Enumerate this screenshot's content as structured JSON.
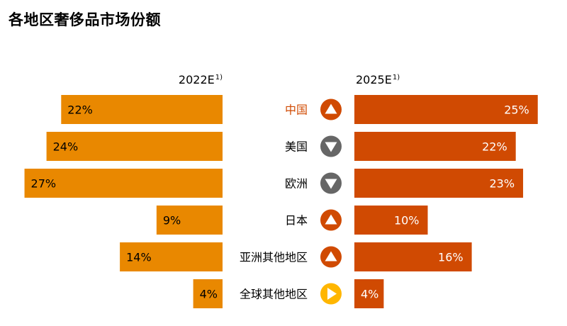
{
  "title": "各地区奢侈品市场份额",
  "header_left": {
    "year": "2022E",
    "footnote": "1)"
  },
  "header_right": {
    "year": "2025E",
    "footnote": "1)"
  },
  "colors": {
    "left_bar": "#e98800",
    "right_bar": "#d04a02",
    "up": "#d04a02",
    "down": "#666666",
    "flat": "#ffb600",
    "highlight_label": "#d04a02",
    "label": "#000000"
  },
  "chart_data": {
    "type": "bar",
    "subtype": "diverging-horizontal",
    "categories": [
      "中国",
      "美国",
      "欧洲",
      "日本",
      "亚洲其他地区",
      "全球其他地区"
    ],
    "series": [
      {
        "name": "2022E",
        "values": [
          22,
          24,
          27,
          9,
          14,
          4
        ],
        "labels": [
          "22%",
          "24%",
          "27%",
          "9%",
          "14%",
          "4%"
        ]
      },
      {
        "name": "2025E",
        "values": [
          25,
          22,
          23,
          10,
          16,
          4
        ],
        "labels": [
          "25%",
          "22%",
          "23%",
          "10%",
          "16%",
          "4%"
        ]
      }
    ],
    "trend_icons": [
      "up",
      "down",
      "down",
      "up",
      "up",
      "right"
    ],
    "highlight_category_index": 0,
    "xlim": [
      0,
      27
    ],
    "grid": false,
    "legend": "none"
  }
}
